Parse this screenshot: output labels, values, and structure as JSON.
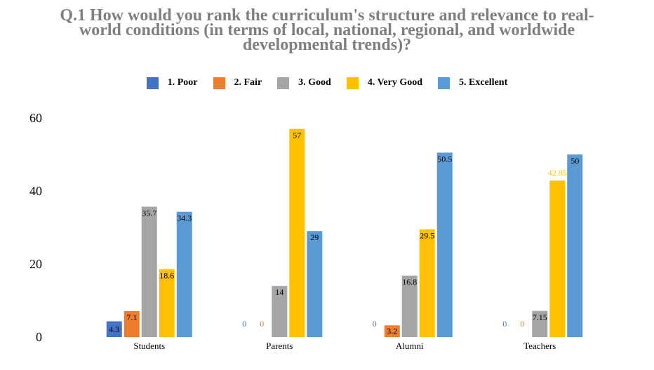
{
  "chart_data": {
    "type": "bar",
    "title": "Q.1   How would you rank the curriculum's structure and relevance to real-world conditions (in terms of local, national, regional, and worldwide developmental trends)?",
    "xlabel": "",
    "ylabel": "",
    "ylim": [
      0,
      60
    ],
    "yticks": [
      0,
      20,
      40,
      60
    ],
    "grid": false,
    "legend_position": "top",
    "categories": [
      "Students",
      "Parents",
      "Alumni",
      "Teachers"
    ],
    "series": [
      {
        "name": "1.  Poor",
        "color": "#4472c4",
        "values": [
          4.3,
          0,
          0,
          0
        ],
        "labels": [
          "4.3",
          "0",
          "0",
          "0"
        ]
      },
      {
        "name": "2.  Fair",
        "color": "#ed7d31",
        "values": [
          7.1,
          0,
          3.2,
          0
        ],
        "labels": [
          "7.1",
          "0",
          "3.2",
          "0"
        ]
      },
      {
        "name": "3.  Good",
        "color": "#a5a5a5",
        "values": [
          35.7,
          14,
          16.8,
          7.15
        ],
        "labels": [
          "35.7",
          "14",
          "16.8",
          "7.15"
        ]
      },
      {
        "name": "4.  Very Good",
        "color": "#ffc000",
        "values": [
          18.6,
          57,
          29.5,
          42.85
        ],
        "labels": [
          "18.6",
          "57",
          "29.5",
          "42.85"
        ]
      },
      {
        "name": "5.  Excellent",
        "color": "#5b9bd5",
        "values": [
          34.3,
          29,
          50.5,
          50
        ],
        "labels": [
          "34.3",
          "29",
          "50.5",
          "50"
        ]
      }
    ]
  }
}
